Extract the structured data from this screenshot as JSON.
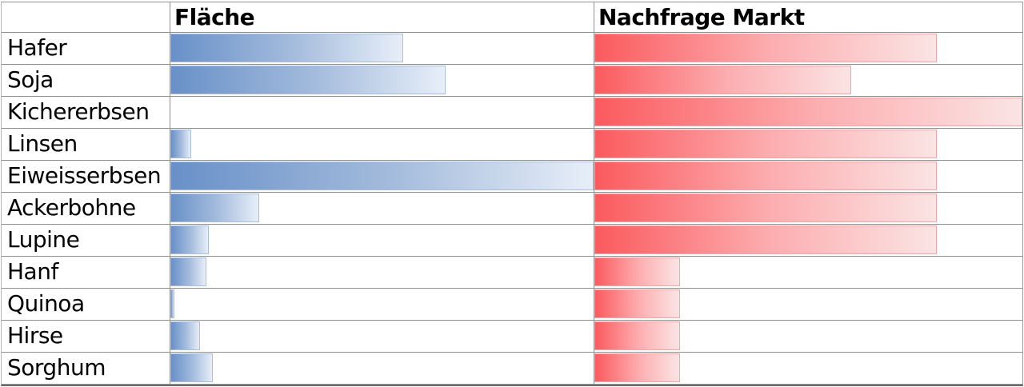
{
  "table": {
    "headers": {
      "label": "",
      "flaeche": "Fläche",
      "nachfrage": "Nachfrage Markt"
    },
    "rows": [
      {
        "label": "Hafer",
        "flaeche_pct": 55,
        "nachfrage_pct": 80
      },
      {
        "label": "Soja",
        "flaeche_pct": 65,
        "nachfrage_pct": 60
      },
      {
        "label": "Kichererbsen",
        "flaeche_pct": 0,
        "nachfrage_pct": 100
      },
      {
        "label": "Linsen",
        "flaeche_pct": 5,
        "nachfrage_pct": 80
      },
      {
        "label": "Eiweisserbsen",
        "flaeche_pct": 100,
        "nachfrage_pct": 80
      },
      {
        "label": "Ackerbohne",
        "flaeche_pct": 21,
        "nachfrage_pct": 80
      },
      {
        "label": "Lupine",
        "flaeche_pct": 9,
        "nachfrage_pct": 80
      },
      {
        "label": "Hanf",
        "flaeche_pct": 8.5,
        "nachfrage_pct": 20
      },
      {
        "label": "Quinoa",
        "flaeche_pct": 1,
        "nachfrage_pct": 20
      },
      {
        "label": "Hirse",
        "flaeche_pct": 7,
        "nachfrage_pct": 20
      },
      {
        "label": "Sorghum",
        "flaeche_pct": 10,
        "nachfrage_pct": 20
      }
    ]
  },
  "chart_data": {
    "type": "bar",
    "orientation": "horizontal",
    "title": "",
    "categories": [
      "Hafer",
      "Soja",
      "Kichererbsen",
      "Linsen",
      "Eiweisserbsen",
      "Ackerbohne",
      "Lupine",
      "Hanf",
      "Quinoa",
      "Hirse",
      "Sorghum"
    ],
    "series": [
      {
        "name": "Fläche",
        "color": "#6890C8",
        "values": [
          55,
          65,
          0,
          5,
          100,
          21,
          9,
          8.5,
          1,
          7,
          10
        ]
      },
      {
        "name": "Nachfrage Markt",
        "color": "#FB5A5E",
        "values": [
          80,
          60,
          100,
          80,
          80,
          80,
          80,
          20,
          20,
          20,
          20
        ]
      }
    ],
    "value_unit": "percent of column width",
    "xlim": [
      0,
      100
    ],
    "legend_position": "column-headers",
    "grid": "table-borders"
  },
  "colors": {
    "flaeche_bar_start": "#6890C8",
    "flaeche_bar_end": "#E7EEF8",
    "flaeche_bar_border": "#A9BFDF",
    "nachfrage_bar_start": "#FB5A5E",
    "nachfrage_bar_end": "#FBE4E4",
    "nachfrage_bar_border": "#F2A4A7",
    "grid_line": "#8F8F8F",
    "text": "#000000",
    "background": "#FFFFFF"
  }
}
